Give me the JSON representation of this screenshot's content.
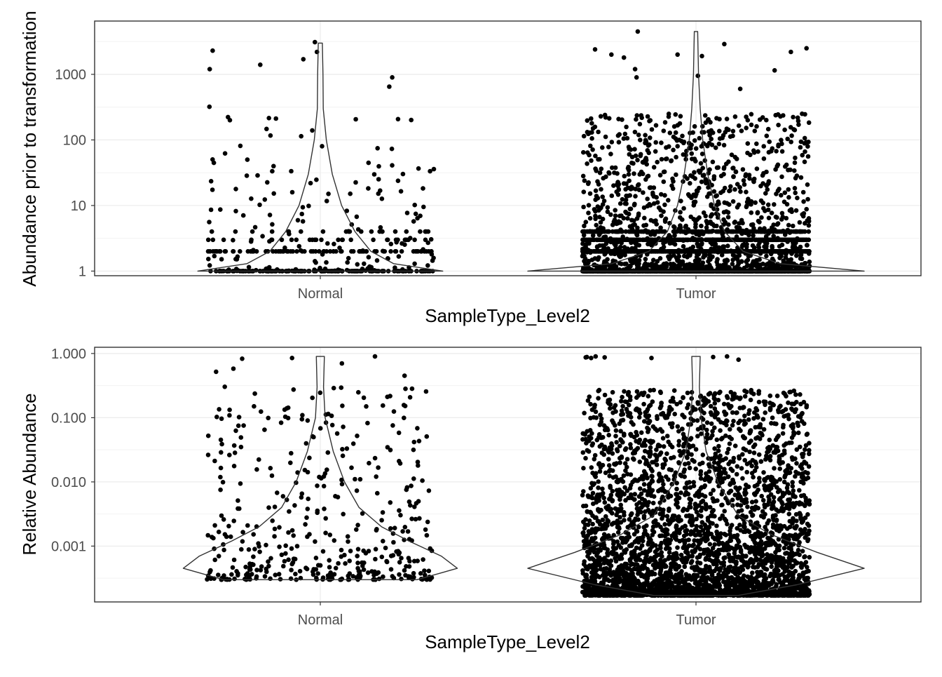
{
  "chart_data": [
    {
      "type": "violin-jitter",
      "xlabel": "SampleType_Level2",
      "ylabel": "Abundance prior to transformation",
      "y_scale": "log10",
      "ylim": [
        0.85,
        6500
      ],
      "y_ticks": [
        1,
        10,
        100,
        1000
      ],
      "y_tick_labels": [
        "1",
        "10",
        "100",
        "1000"
      ],
      "categories": [
        "Normal",
        "Tumor"
      ],
      "grid": true,
      "legend": "none",
      "groups": [
        {
          "name": "Normal",
          "n_points": 420,
          "y_range": [
            1,
            3100
          ],
          "violin_max": 3000,
          "violin_profile": [
            [
              1.0,
              0.92
            ],
            [
              1.3,
              0.55
            ],
            [
              2.0,
              0.38
            ],
            [
              4,
              0.26
            ],
            [
              10,
              0.16
            ],
            [
              30,
              0.09
            ],
            [
              100,
              0.045
            ],
            [
              300,
              0.022
            ],
            [
              1000,
              0.02
            ],
            [
              3000,
              0.015
            ]
          ],
          "outlier_values": [
            3100,
            2300,
            2200,
            1700,
            1400,
            1200,
            900,
            650,
            320,
            200
          ]
        },
        {
          "name": "Tumor",
          "n_points": 3600,
          "y_range": [
            1,
            4500
          ],
          "violin_max": 4500,
          "violin_profile": [
            [
              1.0,
              1.0
            ],
            [
              1.3,
              0.5
            ],
            [
              2.0,
              0.28
            ],
            [
              4,
              0.17
            ],
            [
              10,
              0.11
            ],
            [
              30,
              0.07
            ],
            [
              100,
              0.04
            ],
            [
              300,
              0.025
            ],
            [
              1000,
              0.015
            ],
            [
              4500,
              0.01
            ]
          ],
          "outlier_values": [
            4500,
            2900,
            2500,
            2400,
            2200,
            2000,
            2000,
            1900,
            1800,
            1200,
            1150,
            950,
            900,
            600
          ]
        }
      ]
    },
    {
      "type": "violin-jitter",
      "xlabel": "SampleType_Level2",
      "ylabel": "Relative Abundance",
      "y_scale": "log10",
      "ylim": [
        0.000135,
        1.25
      ],
      "y_ticks": [
        0.001,
        0.01,
        0.1,
        1
      ],
      "y_tick_labels": [
        "0.001",
        "0.010",
        "0.100",
        "1.000"
      ],
      "categories": [
        "Normal",
        "Tumor"
      ],
      "grid": true,
      "legend": "none",
      "groups": [
        {
          "name": "Normal",
          "n_points": 420,
          "y_range": [
            0.0003,
            0.95
          ],
          "violin_max": 0.9,
          "violin_profile": [
            [
              0.0003,
              0.6
            ],
            [
              0.00045,
              0.85
            ],
            [
              0.0007,
              0.75
            ],
            [
              0.0012,
              0.55
            ],
            [
              0.002,
              0.38
            ],
            [
              0.004,
              0.24
            ],
            [
              0.01,
              0.15
            ],
            [
              0.03,
              0.08
            ],
            [
              0.1,
              0.03
            ],
            [
              0.3,
              0.02
            ],
            [
              0.9,
              0.025
            ]
          ],
          "outlier_values": [
            0.9,
            0.85,
            0.83,
            0.7,
            0.58,
            0.52,
            0.45
          ]
        },
        {
          "name": "Tumor",
          "n_points": 3600,
          "y_range": [
            0.00017,
            0.95
          ],
          "violin_max": 0.9,
          "violin_profile": [
            [
              0.00017,
              0.25
            ],
            [
              0.00025,
              0.6
            ],
            [
              0.00045,
              1.0
            ],
            [
              0.0008,
              0.72
            ],
            [
              0.0015,
              0.45
            ],
            [
              0.003,
              0.25
            ],
            [
              0.01,
              0.13
            ],
            [
              0.03,
              0.06
            ],
            [
              0.1,
              0.03
            ],
            [
              0.3,
              0.02
            ],
            [
              0.9,
              0.025
            ]
          ],
          "outlier_values": [
            0.9,
            0.9,
            0.88,
            0.88,
            0.87,
            0.87,
            0.85,
            0.85,
            0.8
          ]
        }
      ]
    }
  ]
}
